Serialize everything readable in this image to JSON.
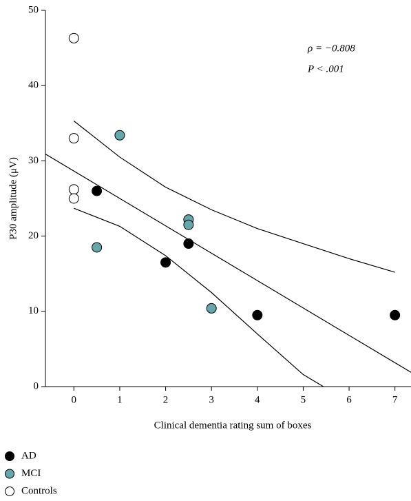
{
  "chart_data": {
    "type": "scatter",
    "xlabel": "Clinical dementia rating sum of boxes",
    "ylabel": "P30 amplitude (μV)",
    "annotations": [
      "ρ = −0.808",
      "P < .001"
    ],
    "xlim": [
      -0.62,
      7.35
    ],
    "xticks": [
      0,
      1,
      2,
      3,
      4,
      5,
      6,
      7
    ],
    "ylim": [
      0,
      50
    ],
    "yticks": [
      0,
      10,
      20,
      30,
      40,
      50
    ],
    "series": [
      {
        "name": "AD",
        "color": "#000000",
        "x": [
          0.5,
          2,
          2.5,
          4,
          7
        ],
        "values": [
          26.0,
          16.5,
          19.0,
          9.5,
          9.5
        ]
      },
      {
        "name": "MCI",
        "color": "#66a6aa",
        "x": [
          1,
          0.5,
          2.5,
          2.5,
          3
        ],
        "values": [
          33.4,
          18.5,
          22.2,
          21.5,
          10.4
        ]
      },
      {
        "name": "Controls",
        "color": "#ffffff",
        "x": [
          0,
          0,
          0,
          0
        ],
        "values": [
          46.3,
          33.0,
          26.2,
          25.0
        ]
      }
    ],
    "fit_lines": [
      {
        "x": [
          -0.62,
          7.35
        ],
        "values": [
          30.9,
          1.9
        ]
      },
      {
        "x": [
          0,
          1,
          2,
          3,
          4,
          5,
          6,
          7
        ],
        "values": [
          35.3,
          30.5,
          26.5,
          23.5,
          21.0,
          19.0,
          17.0,
          15.2
        ]
      },
      {
        "x": [
          0,
          1,
          2,
          3,
          4,
          5,
          5.44
        ],
        "values": [
          23.7,
          21.3,
          17.4,
          12.5,
          7.0,
          1.6,
          0
        ]
      }
    ]
  }
}
